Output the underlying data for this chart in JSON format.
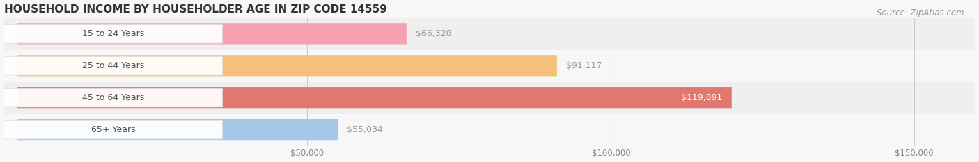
{
  "title": "HOUSEHOLD INCOME BY HOUSEHOLDER AGE IN ZIP CODE 14559",
  "source": "Source: ZipAtlas.com",
  "categories": [
    "15 to 24 Years",
    "25 to 44 Years",
    "45 to 64 Years",
    "65+ Years"
  ],
  "values": [
    66328,
    91117,
    119891,
    55034
  ],
  "bar_colors": [
    "#f5a0b0",
    "#f5c07a",
    "#e07870",
    "#a8c8ea"
  ],
  "background_color": "#f7f7f7",
  "row_bg_even": "#efefef",
  "row_bg_odd": "#f7f7f7",
  "label_box_color": "#ffffff",
  "label_text_color": "#555555",
  "value_label_color_inside": "#ffffff",
  "value_label_color_outside": "#888888",
  "grid_color": "#cccccc",
  "xlim": [
    0,
    160000
  ],
  "xticks": [
    0,
    50000,
    100000,
    150000
  ],
  "xtick_labels": [
    "",
    "$50,000",
    "$100,000",
    "$150,000"
  ],
  "figsize": [
    14.06,
    2.33
  ],
  "dpi": 100,
  "bar_height": 0.68,
  "title_fontsize": 11,
  "label_fontsize": 9,
  "tick_fontsize": 8.5,
  "source_fontsize": 8.5,
  "value_inside_threshold": 110000
}
